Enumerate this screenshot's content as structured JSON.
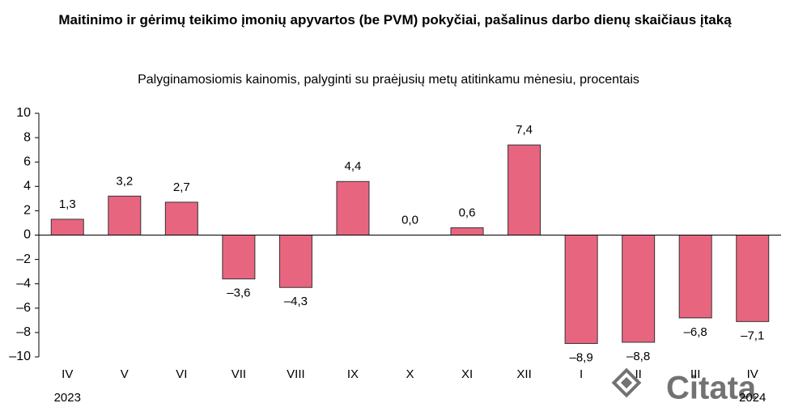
{
  "chart_data": {
    "type": "bar",
    "title": "Maitinimo ir gėrimų teikimo įmonių apyvartos (be PVM) pokyčiai, pašalinus darbo dienų skaičiaus įtaką",
    "subtitle": "Palyginamosiomis kainomis, palyginti su praėjusių metų atitinkamu mėnesiu, procentais",
    "categories": [
      "IV",
      "V",
      "VI",
      "VII",
      "VIII",
      "IX",
      "X",
      "XI",
      "XII",
      "I",
      "II",
      "III",
      "IV"
    ],
    "values": [
      1.3,
      3.2,
      2.7,
      -3.6,
      -4.3,
      4.4,
      0.0,
      0.6,
      7.4,
      -8.9,
      -8.8,
      -6.8,
      -7.1
    ],
    "value_labels": [
      "1,3",
      "3,2",
      "2,7",
      "–3,6",
      "–4,3",
      "4,4",
      "0,0",
      "0,6",
      "7,4",
      "–8,9",
      "–8,8",
      "–6,8",
      "–7,1"
    ],
    "year_labels": [
      "2023",
      "2024"
    ],
    "color": "#e8657f",
    "ylim": [
      -10,
      10
    ],
    "yticks": [
      {
        "value": -10,
        "label": "–10"
      },
      {
        "value": -8,
        "label": "–8"
      },
      {
        "value": -6,
        "label": "–6"
      },
      {
        "value": -4,
        "label": "–4"
      },
      {
        "value": -2,
        "label": "–2"
      },
      0,
      2,
      4,
      6,
      8,
      10
    ],
    "grid": false,
    "watermark": "Citata"
  }
}
